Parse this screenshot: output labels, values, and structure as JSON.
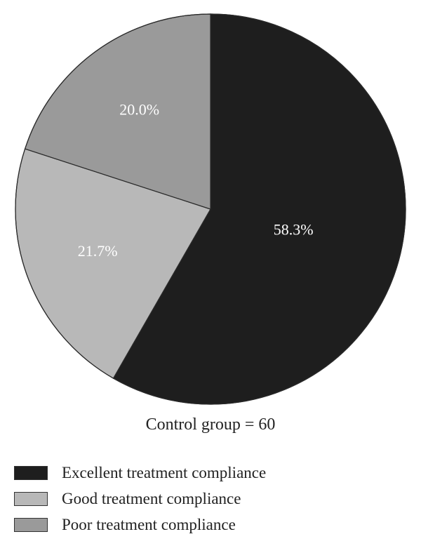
{
  "chart_data": {
    "type": "pie",
    "categories": [
      "Excellent treatment compliance",
      "Good treatment compliance",
      "Poor treatment compliance"
    ],
    "values": [
      58.3,
      21.7,
      20.0
    ],
    "value_labels": [
      "58.3%",
      "21.7%",
      "20.0%"
    ],
    "colors": [
      "#1e1e1e",
      "#b8b8b8",
      "#9a9a9a"
    ],
    "caption": "Control group = 60",
    "legend_position": "bottom-left",
    "start_angle": "top",
    "direction": "clockwise"
  }
}
